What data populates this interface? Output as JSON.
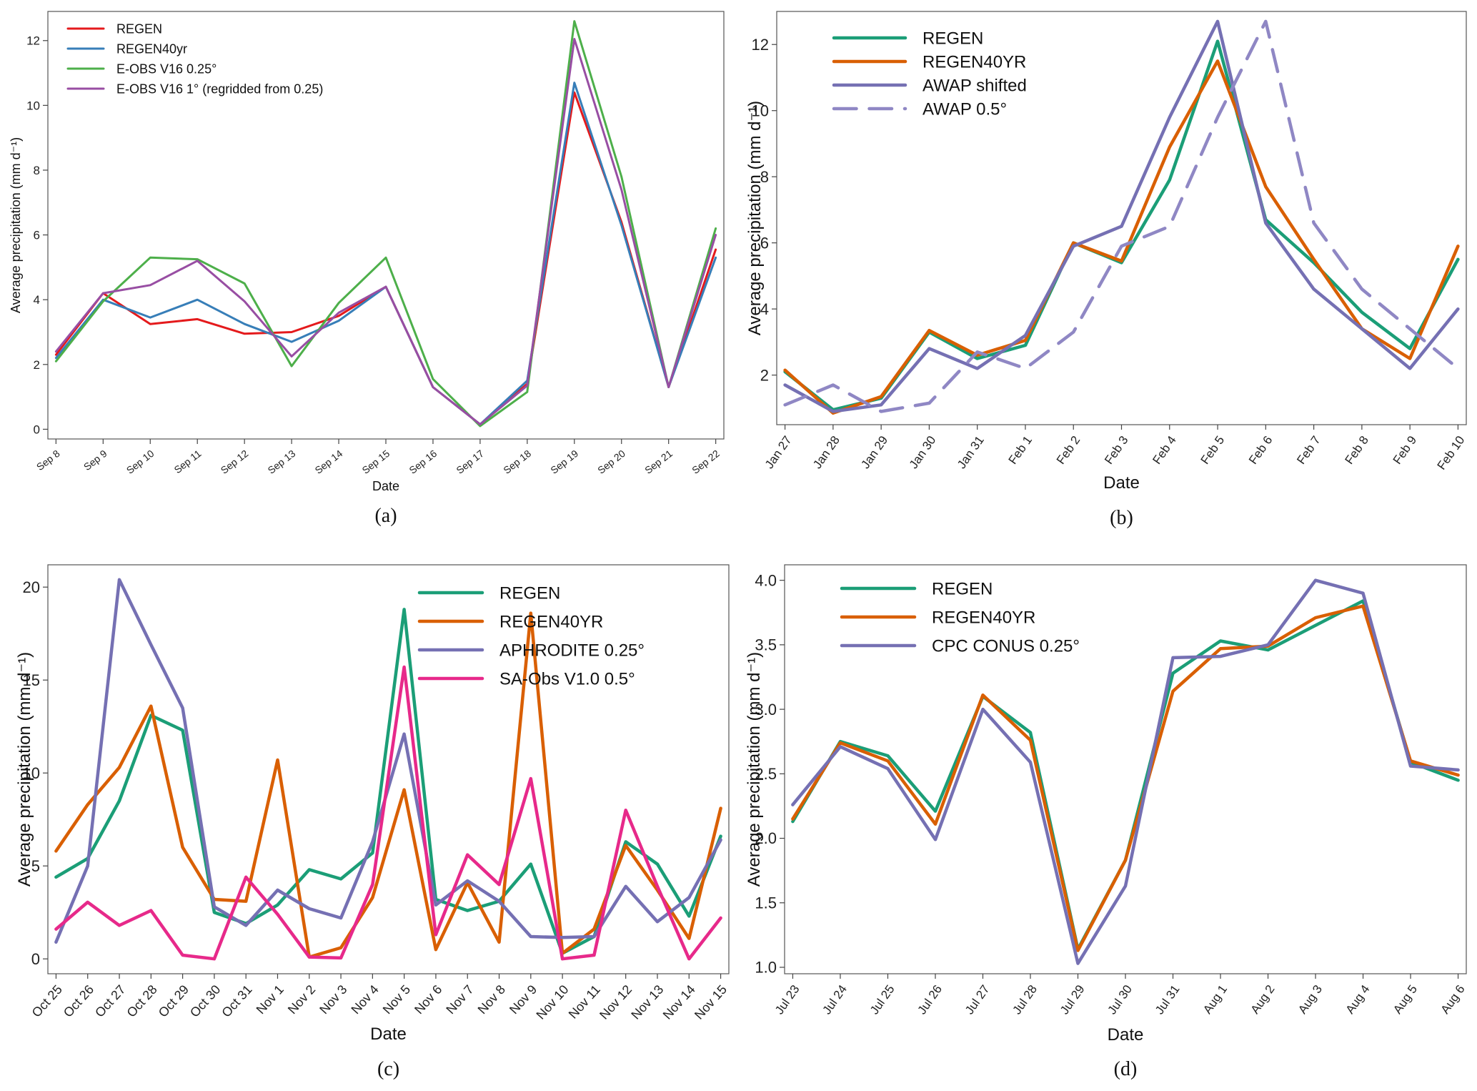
{
  "chart_data": [
    {
      "panel_label": "(a)",
      "type": "line",
      "title": "",
      "xlabel": "Date",
      "ylabel": "Average precipitation (mm d⁻¹)",
      "x": [
        "Sep 8",
        "Sep 9",
        "Sep 10",
        "Sep 11",
        "Sep 12",
        "Sep 13",
        "Sep 14",
        "Sep 15",
        "Sep 16",
        "Sep 17",
        "Sep 18",
        "Sep 19",
        "Sep 20",
        "Sep 21",
        "Sep 22"
      ],
      "ylim": [
        -0.3,
        12.9
      ],
      "yticks": [
        "0",
        "2",
        "4",
        "6",
        "8",
        "10",
        "12"
      ],
      "legend_position": "top-left",
      "series": [
        {
          "name": "REGEN",
          "color": "#e41a1c",
          "dashed": false,
          "values": [
            2.3,
            4.2,
            3.25,
            3.4,
            2.95,
            3.0,
            3.5,
            4.4,
            1.3,
            0.15,
            1.4,
            10.4,
            6.4,
            1.3,
            5.55
          ]
        },
        {
          "name": "REGEN40yr",
          "color": "#377eb8",
          "dashed": false,
          "values": [
            2.2,
            4.0,
            3.45,
            4.0,
            3.25,
            2.7,
            3.35,
            4.4,
            1.3,
            0.15,
            1.5,
            10.7,
            6.3,
            1.3,
            5.3
          ]
        },
        {
          "name": "E-OBS V16 0.25°",
          "color": "#4daf4a",
          "dashed": false,
          "values": [
            2.1,
            3.95,
            5.3,
            5.25,
            4.5,
            1.95,
            3.9,
            5.3,
            1.55,
            0.1,
            1.15,
            12.6,
            7.8,
            1.3,
            6.2
          ]
        },
        {
          "name": "E-OBS V16 1° (regridded from 0.25)",
          "color": "#984ea3",
          "dashed": false,
          "values": [
            2.4,
            4.2,
            4.45,
            5.2,
            3.95,
            2.25,
            3.6,
            4.4,
            1.3,
            0.15,
            1.35,
            12.05,
            7.4,
            1.3,
            6.0
          ]
        }
      ]
    },
    {
      "panel_label": "(b)",
      "type": "line",
      "title": "",
      "xlabel": "Date",
      "ylabel": "Average precipitation (mm d⁻¹)",
      "x": [
        "Jan 27",
        "Jan 28",
        "Jan 29",
        "Jan 30",
        "Jan 31",
        "Feb 1",
        "Feb 2",
        "Feb 3",
        "Feb 4",
        "Feb 5",
        "Feb 6",
        "Feb 7",
        "Feb 8",
        "Feb 9",
        "Feb 10"
      ],
      "ylim": [
        0.5,
        13.0
      ],
      "yticks": [
        "2",
        "4",
        "6",
        "8",
        "10",
        "12"
      ],
      "legend_position": "top-left",
      "series": [
        {
          "name": "REGEN",
          "color": "#1b9e77",
          "dashed": false,
          "values": [
            2.1,
            0.95,
            1.3,
            3.3,
            2.5,
            2.9,
            6.0,
            5.4,
            7.9,
            12.1,
            6.7,
            5.4,
            3.9,
            2.8,
            5.5
          ]
        },
        {
          "name": "REGEN40YR",
          "color": "#d95f02",
          "dashed": false,
          "values": [
            2.15,
            0.85,
            1.35,
            3.35,
            2.6,
            3.05,
            6.0,
            5.45,
            8.9,
            11.5,
            7.7,
            5.5,
            3.4,
            2.5,
            5.9
          ]
        },
        {
          "name": "AWAP shifted",
          "color": "#7570b3",
          "dashed": false,
          "values": [
            1.7,
            0.9,
            1.1,
            2.8,
            2.2,
            3.2,
            5.9,
            6.5,
            9.8,
            12.7,
            6.6,
            4.6,
            3.4,
            2.2,
            4.0
          ]
        },
        {
          "name": "AWAP 0.5°",
          "color": "#8f87c4",
          "dashed": true,
          "values": [
            1.1,
            1.7,
            0.9,
            1.15,
            2.7,
            2.2,
            3.3,
            5.9,
            6.5,
            9.8,
            12.7,
            6.6,
            4.6,
            3.4,
            2.2
          ]
        }
      ]
    },
    {
      "panel_label": "(c)",
      "type": "line",
      "title": "",
      "xlabel": "Date",
      "ylabel": "Average precipitation (mm d⁻¹)",
      "x": [
        "Oct 25",
        "Oct 26",
        "Oct 27",
        "Oct 28",
        "Oct 29",
        "Oct 30",
        "Oct 31",
        "Nov 1",
        "Nov 2",
        "Nov 3",
        "Nov 4",
        "Nov 5",
        "Nov 6",
        "Nov 7",
        "Nov 8",
        "Nov 9",
        "Nov 10",
        "Nov 11",
        "Nov 12",
        "Nov 13",
        "Nov 14",
        "Nov 15"
      ],
      "ylim": [
        -0.8,
        21.2
      ],
      "yticks": [
        "0",
        "5",
        "10",
        "15",
        "20"
      ],
      "legend_position": "top-right",
      "series": [
        {
          "name": "REGEN",
          "color": "#1b9e77",
          "dashed": false,
          "values": [
            4.4,
            5.4,
            8.5,
            13.1,
            12.3,
            2.5,
            1.9,
            2.9,
            4.8,
            4.3,
            5.7,
            18.8,
            3.2,
            2.6,
            3.1,
            5.1,
            0.3,
            1.2,
            6.3,
            5.1,
            2.3,
            6.6
          ]
        },
        {
          "name": "REGEN40YR",
          "color": "#d95f02",
          "dashed": false,
          "values": [
            5.8,
            8.3,
            10.3,
            13.6,
            6.0,
            3.2,
            3.1,
            10.7,
            0.1,
            0.6,
            3.3,
            9.1,
            0.5,
            4.1,
            0.9,
            18.6,
            0.3,
            1.6,
            6.1,
            3.7,
            1.1,
            8.1
          ]
        },
        {
          "name": "APHRODITE 0.25°",
          "color": "#7570b3",
          "dashed": false,
          "values": [
            0.9,
            5.0,
            20.4,
            16.9,
            13.5,
            2.8,
            1.8,
            3.7,
            2.7,
            2.2,
            6.3,
            12.1,
            2.9,
            4.2,
            3.1,
            1.2,
            1.15,
            1.2,
            3.9,
            2.0,
            3.3,
            6.4
          ]
        },
        {
          "name": "SA-Obs V1.0 0.5°",
          "color": "#e7298a",
          "dashed": false,
          "values": [
            1.6,
            3.05,
            1.8,
            2.6,
            0.2,
            0.0,
            4.4,
            2.4,
            0.1,
            0.05,
            4.0,
            15.7,
            1.3,
            5.6,
            4.0,
            9.7,
            0.0,
            0.2,
            8.0,
            3.9,
            0.0,
            2.2
          ]
        }
      ]
    },
    {
      "panel_label": "(d)",
      "type": "line",
      "title": "",
      "xlabel": "Date",
      "ylabel": "Average precipitation (mm d⁻¹)",
      "x": [
        "Jul 23",
        "Jul 24",
        "Jul 25",
        "Jul 26",
        "Jul 27",
        "Jul 28",
        "Jul 29",
        "Jul 30",
        "Jul 31",
        "Aug 1",
        "Aug 2",
        "Aug 3",
        "Aug 4",
        "Aug 5",
        "Aug 6"
      ],
      "ylim": [
        0.95,
        4.12
      ],
      "yticks": [
        "1.0",
        "1.5",
        "2.0",
        "2.5",
        "3.0",
        "3.5",
        "4.0"
      ],
      "legend_position": "top-left",
      "series": [
        {
          "name": "REGEN",
          "color": "#1b9e77",
          "dashed": false,
          "values": [
            2.13,
            2.75,
            2.64,
            2.21,
            3.1,
            2.82,
            1.14,
            1.83,
            3.28,
            3.53,
            3.46,
            3.65,
            3.84,
            2.59,
            2.45
          ]
        },
        {
          "name": "REGEN40YR",
          "color": "#d95f02",
          "dashed": false,
          "values": [
            2.15,
            2.74,
            2.6,
            2.11,
            3.11,
            2.76,
            1.13,
            1.83,
            3.14,
            3.47,
            3.49,
            3.71,
            3.8,
            2.6,
            2.49
          ]
        },
        {
          "name": "CPC CONUS 0.25°",
          "color": "#7570b3",
          "dashed": false,
          "values": [
            2.26,
            2.71,
            2.54,
            1.99,
            3.0,
            2.59,
            1.03,
            1.63,
            3.4,
            3.41,
            3.5,
            4.0,
            3.9,
            2.56,
            2.53
          ]
        }
      ]
    }
  ]
}
